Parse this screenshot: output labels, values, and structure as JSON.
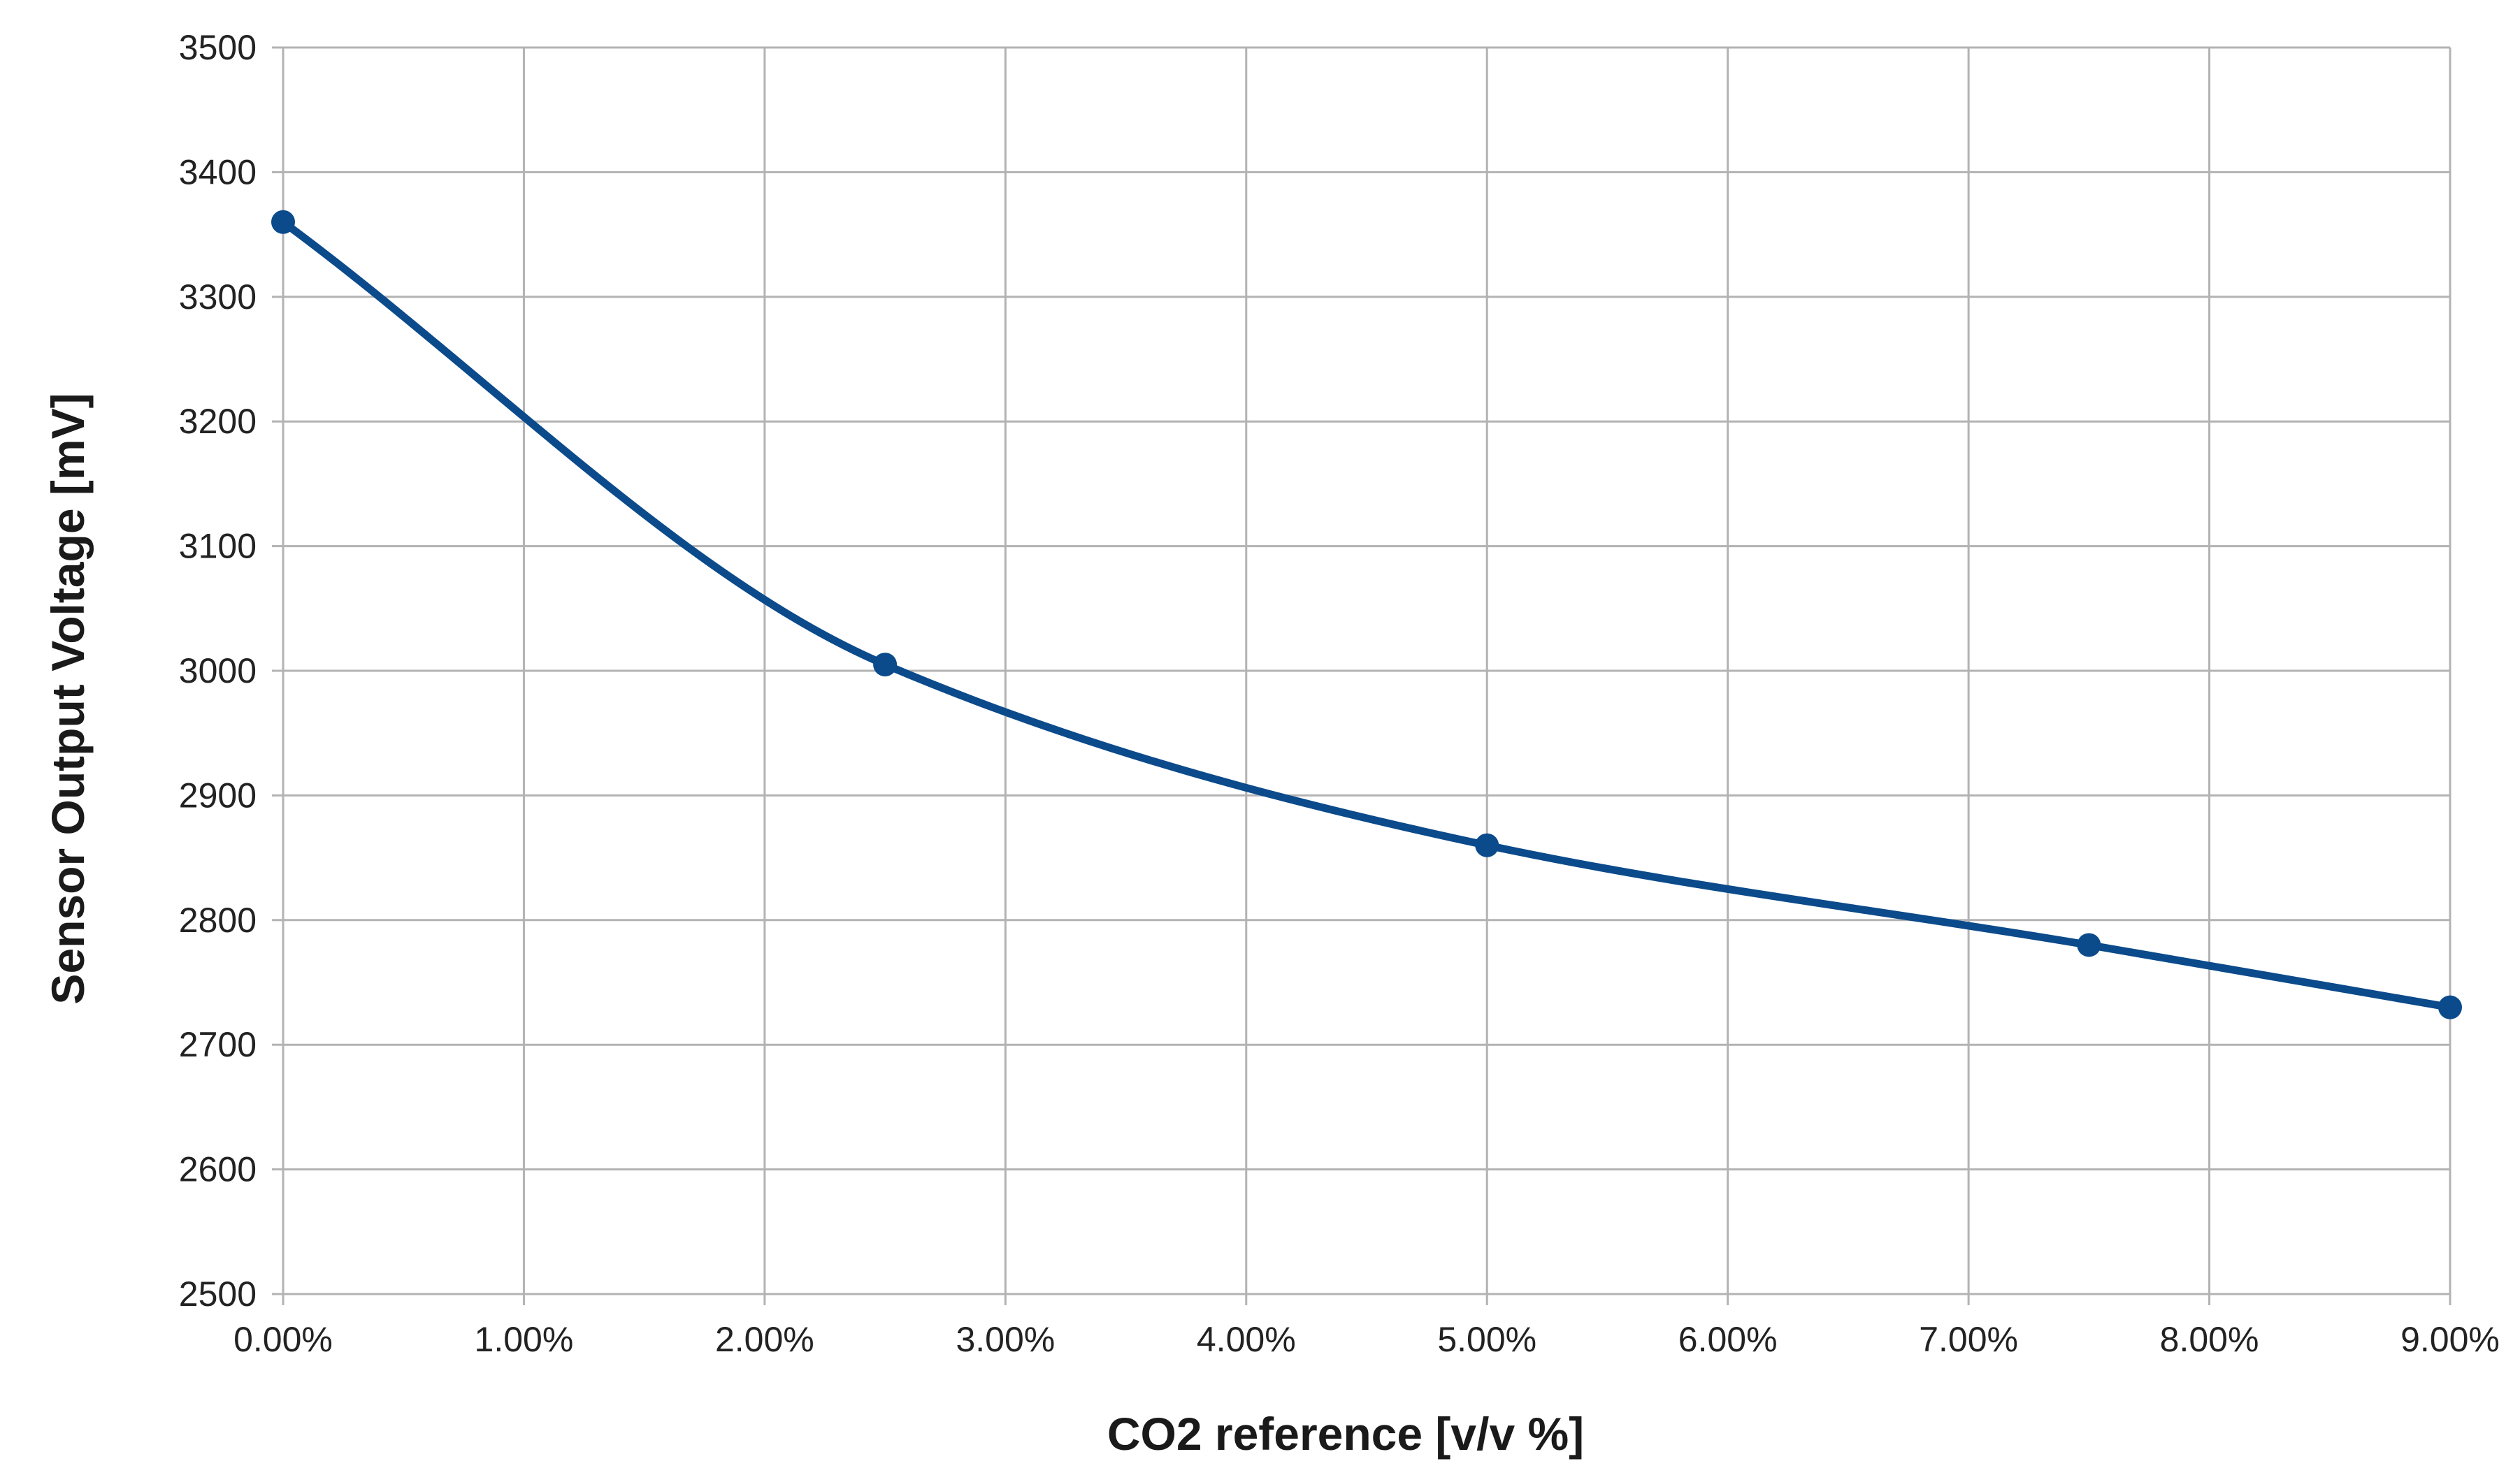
{
  "chart_data": {
    "type": "line",
    "title": "",
    "xlabel": "CO2 reference [v/v %]",
    "ylabel": "Sensor Output Voltage [mV]",
    "xlim": [
      0,
      9
    ],
    "ylim": [
      2500,
      3500
    ],
    "x_ticks": [
      0,
      1,
      2,
      3,
      4,
      5,
      6,
      7,
      8,
      9
    ],
    "x_tick_labels": [
      "0.00%",
      "1.00%",
      "2.00%",
      "3.00%",
      "4.00%",
      "5.00%",
      "6.00%",
      "7.00%",
      "8.00%",
      "9.00%"
    ],
    "y_ticks": [
      2500,
      2600,
      2700,
      2800,
      2900,
      3000,
      3100,
      3200,
      3300,
      3400,
      3500
    ],
    "y_tick_labels": [
      "2500",
      "2600",
      "2700",
      "2800",
      "2900",
      "3000",
      "3100",
      "3200",
      "3300",
      "3400",
      "3500"
    ],
    "grid": true,
    "smooth": true,
    "series": [
      {
        "name": "Sensor Output Voltage",
        "color": "#0b4a8b",
        "x": [
          0,
          2.5,
          5,
          7.5,
          9
        ],
        "y": [
          3360,
          3005,
          2860,
          2780,
          2730
        ]
      }
    ]
  }
}
